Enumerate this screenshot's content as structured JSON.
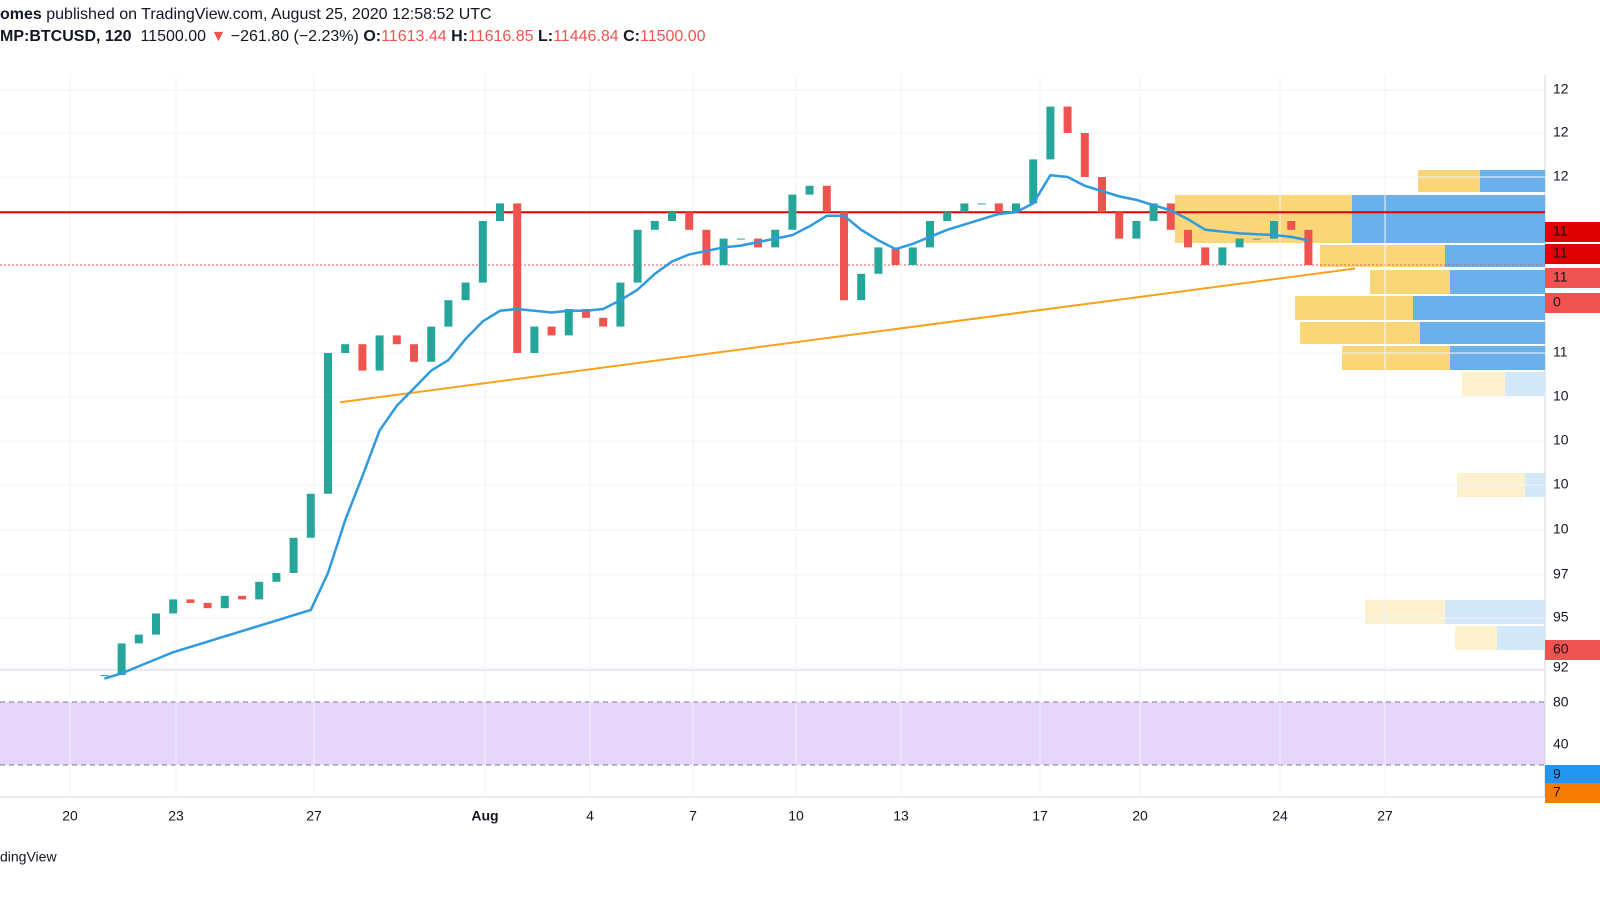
{
  "header": {
    "author": "omes",
    "published": " published on TradingView.com, August 25, 2020 12:58:52 UTC",
    "symbol": "MP:BTCUSD, 120",
    "last": "11500.00",
    "arrow": "▼",
    "change": "−261.80 (−2.23%)",
    "o_label": "O:",
    "o": "11613.44",
    "h_label": "H:",
    "h": "11616.85",
    "l_label": "L:",
    "l": "11446.84",
    "c_label": "C:",
    "c": "11500.00"
  },
  "x_labels": [
    "20",
    "23",
    "27",
    "Aug",
    "4",
    "7",
    "10",
    "13",
    "17",
    "20",
    "24",
    "27"
  ],
  "price_axis_labels": [
    "12",
    "12",
    "12",
    "11",
    "11",
    "11",
    "0",
    "11",
    "10",
    "10",
    "10",
    "10",
    "97",
    "95",
    "60",
    "92"
  ],
  "stoch_axis_labels": [
    "80",
    "40",
    "9",
    "7"
  ],
  "footer": "dingView",
  "price": {
    "close": [
      9170,
      9350,
      9400,
      9520,
      9600,
      9580,
      9550,
      9620,
      9600,
      9700,
      9750,
      9950,
      10200,
      11000,
      11050,
      10900,
      11100,
      11050,
      10950,
      11150,
      11300,
      11400,
      11750,
      11850,
      11000,
      11150,
      11100,
      11250,
      11200,
      11150,
      11400,
      11700,
      11750,
      11800,
      11700,
      11500,
      11650,
      11650,
      11600,
      11700,
      11900,
      11950,
      11800,
      11300,
      11450,
      11600,
      11500,
      11600,
      11750,
      11800,
      11850,
      11850,
      11800,
      11850,
      12100,
      12400,
      12250,
      12000,
      11800,
      11650,
      11750,
      11850,
      11700,
      11600,
      11500,
      11600,
      11650,
      11650,
      11750,
      11700,
      11500
    ],
    "ma": [
      9150,
      9180,
      9220,
      9260,
      9300,
      9330,
      9360,
      9390,
      9420,
      9450,
      9480,
      9510,
      9540,
      9750,
      10050,
      10300,
      10560,
      10700,
      10800,
      10900,
      10960,
      11080,
      11180,
      11240,
      11250,
      11240,
      11230,
      11240,
      11240,
      11250,
      11300,
      11360,
      11450,
      11520,
      11560,
      11580,
      11600,
      11610,
      11630,
      11650,
      11670,
      11720,
      11780,
      11780,
      11700,
      11640,
      11590,
      11620,
      11660,
      11700,
      11730,
      11760,
      11790,
      11800,
      11850,
      12010,
      12000,
      11950,
      11920,
      11890,
      11870,
      11840,
      11810,
      11760,
      11700,
      11690,
      11680,
      11675,
      11670,
      11660,
      11640
    ],
    "level": 11800,
    "trend": [
      10720,
      11480
    ]
  }
}
